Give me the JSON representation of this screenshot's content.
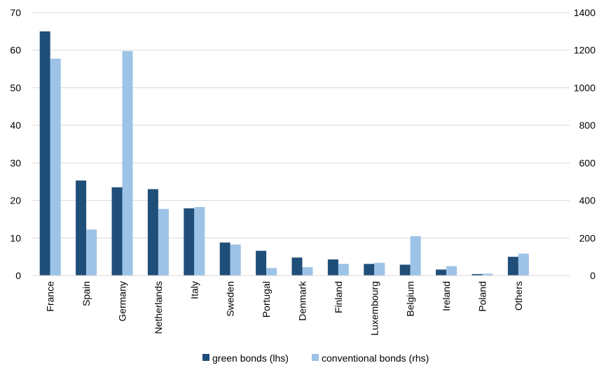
{
  "chart_data": {
    "type": "bar",
    "categories": [
      "France",
      "Spain",
      "Germany",
      "Netherlands",
      "Italy",
      "Sweden",
      "Portugal",
      "Denmark",
      "Finland",
      "Luxembourg",
      "Belgium",
      "Ireland",
      "Poland",
      "Others"
    ],
    "series": [
      {
        "name": "green bonds (lhs)",
        "axis": "left",
        "color": "#1F4E79",
        "values": [
          65.0,
          25.3,
          23.5,
          23.0,
          17.9,
          8.8,
          6.6,
          4.8,
          4.3,
          3.1,
          2.9,
          1.6,
          0.4,
          5.0
        ]
      },
      {
        "name": "conventional bonds (rhs)",
        "axis": "right",
        "color": "#9DC3E6",
        "values": [
          1155,
          245,
          1195,
          355,
          365,
          165,
          40,
          45,
          62,
          68,
          210,
          50,
          10,
          117
        ]
      }
    ],
    "y_left": {
      "ylim": [
        0,
        70
      ],
      "ticks": [
        "0",
        "10",
        "20",
        "30",
        "40",
        "50",
        "60",
        "70"
      ]
    },
    "y_right": {
      "ylim": [
        0,
        1400
      ],
      "ticks": [
        "0",
        "200",
        "400",
        "600",
        "800",
        "1000",
        "1200",
        "1400"
      ]
    },
    "grid": true,
    "legend_position": "bottom"
  }
}
